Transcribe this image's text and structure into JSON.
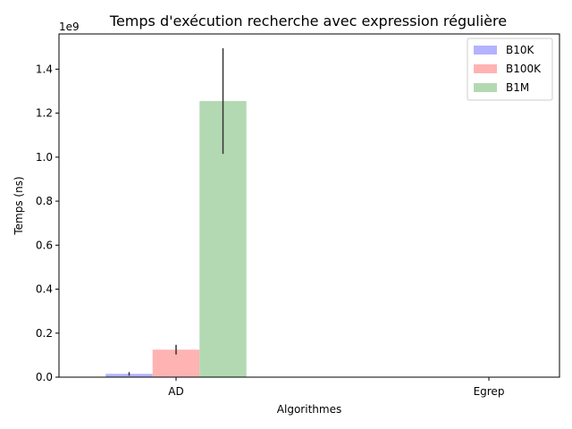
{
  "chart_data": {
    "type": "bar",
    "title": "Temps d'exécution recherche avec expression régulière",
    "xlabel": "Algorithmes",
    "ylabel": "Temps (ns)",
    "y_offset_label": "1e9",
    "y_scale": 1000000000,
    "ylim": [
      0,
      1.56
    ],
    "y_ticks": [
      0.0,
      0.2,
      0.4,
      0.6,
      0.8,
      1.0,
      1.2,
      1.4
    ],
    "y_tick_labels": [
      "0.0",
      "0.2",
      "0.4",
      "0.6",
      "0.8",
      "1.0",
      "1.2",
      "1.4"
    ],
    "categories": [
      "AD",
      "Egrep"
    ],
    "legend_position": "top-right",
    "grid": false,
    "series": [
      {
        "name": "B10K",
        "color": "#b3b3ff",
        "values": [
          0.015,
          0.0
        ],
        "errors": [
          0.008,
          0.0
        ]
      },
      {
        "name": "B100K",
        "color": "#ffb3b3",
        "values": [
          0.125,
          0.0
        ],
        "errors": [
          0.022,
          0.0
        ]
      },
      {
        "name": "B1M",
        "color": "#b3d9b3",
        "values": [
          1.255,
          0.0
        ],
        "errors": [
          0.24,
          0.0
        ]
      }
    ]
  }
}
